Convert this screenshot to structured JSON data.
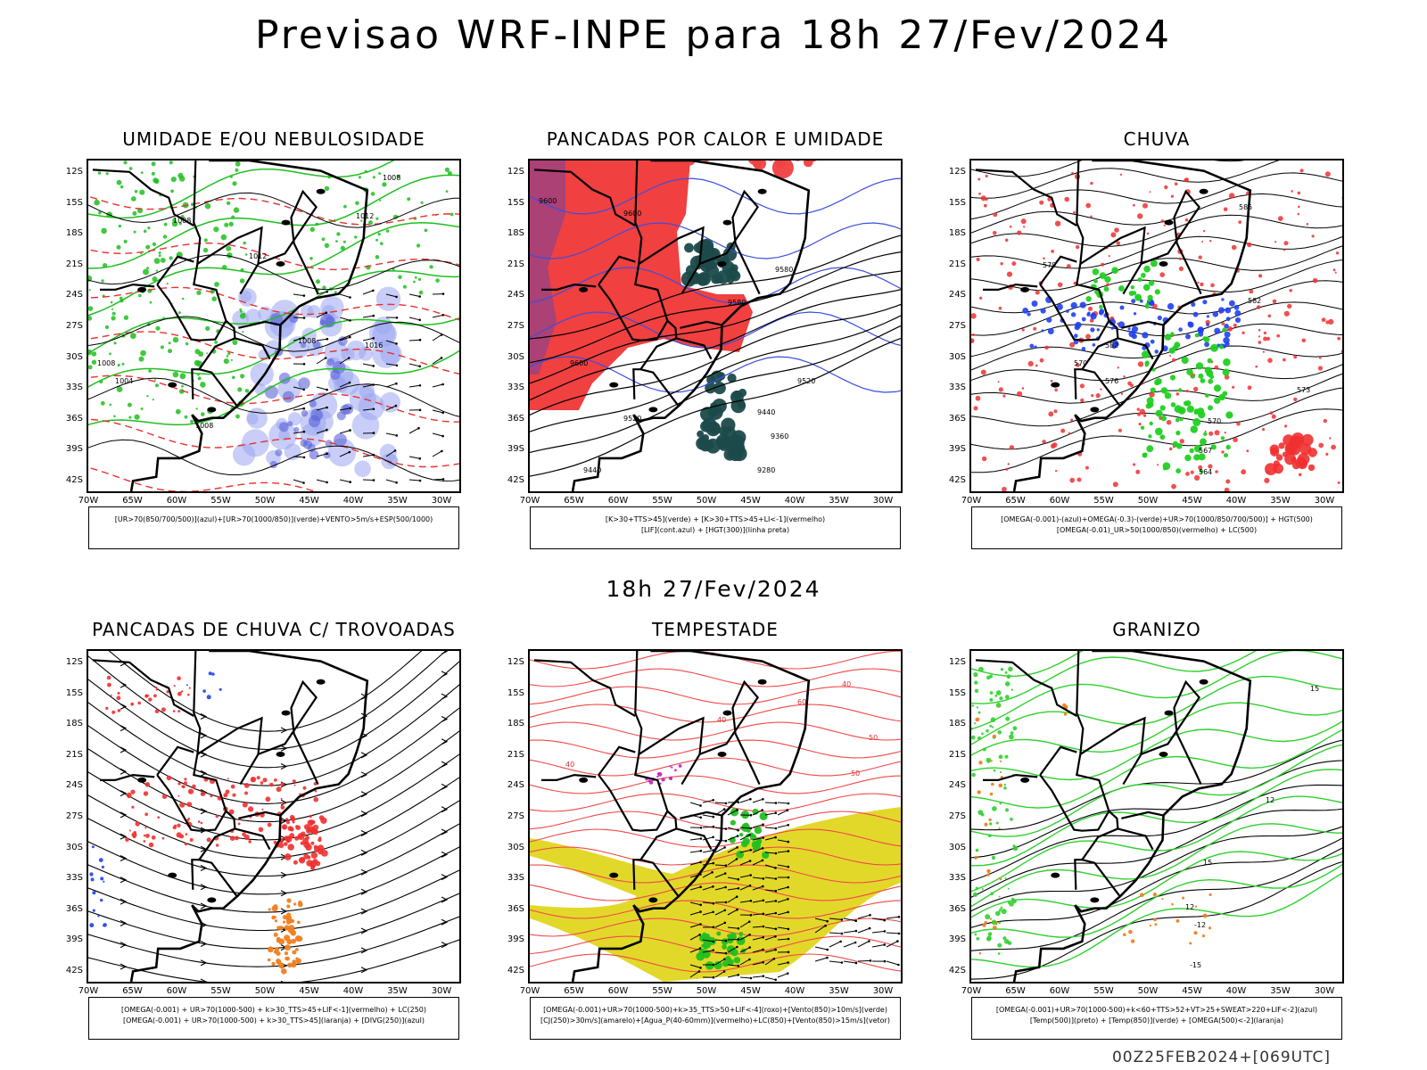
{
  "main_title": "Previsao WRF-INPE  para 18h 27/Fev/2024",
  "mid_title": "18h 27/Fev/2024",
  "run_stamp": "00Z25FEB2024+[069UTC]",
  "axis": {
    "lat_labels": [
      "12S",
      "15S",
      "18S",
      "21S",
      "24S",
      "27S",
      "30S",
      "33S",
      "36S",
      "39S",
      "42S"
    ],
    "lon_labels": [
      "70W",
      "65W",
      "60W",
      "55W",
      "50W",
      "45W",
      "40W",
      "35W",
      "30W"
    ]
  },
  "panels": [
    {
      "id": "umidade",
      "title": "UMIDADE E/OU NEBULOSIDADE",
      "legend": [
        "[UR>70(850/700/500)](azul)+[UR>70(1000/850)](verde)+VENTO>5m/s+ESP(500/1000)"
      ],
      "colors": {
        "humid_high": "#9aa6f0",
        "humid_low": "#1fbf1f",
        "thickness": "#e83030"
      },
      "isobar_labels": [
        "1008",
        "1008",
        "1012",
        "1012",
        "1008",
        "1016",
        "1008",
        "1004",
        "1008"
      ]
    },
    {
      "id": "pancadas_calor",
      "title": "PANCADAS POR CALOR E UMIDADE",
      "legend": [
        "[K>30+TTS>45](verde) + [K>30+TTS>45+LI<-1](vermelho)",
        "[LIF](cont.azul) + [HGT(300)](linha preta)"
      ],
      "colors": {
        "unstable": "#f04040",
        "moist": "#1c4a4a",
        "lif": "#3a4fe0"
      },
      "height_labels": [
        "9600",
        "9600",
        "9580",
        "9580",
        "9600",
        "9520",
        "9520",
        "9440",
        "9360",
        "9280",
        "9440"
      ]
    },
    {
      "id": "chuva",
      "title": "CHUVA",
      "legend": [
        "[OMEGA(-0.001)-(azul)+OMEGA(-0.3)-(verde)+UR>70(1000/850/700/500)] + HGT(500)",
        "[OMEGA(-0.01)_UR>50(1000/850)(vermelho) + LC(500)"
      ],
      "colors": {
        "blue": "#2040f0",
        "green": "#20d020",
        "red": "#f03030"
      },
      "height_labels": [
        "585",
        "582",
        "576",
        "573",
        "570",
        "567",
        "564",
        "570",
        "579",
        "582"
      ]
    },
    {
      "id": "trovoadas",
      "title": "PANCADAS DE CHUVA C/ TROVOADAS",
      "legend": [
        "[OMEGA(-0.001) + UR>70(1000-500) + k>30_TTS>45+LIF<-1](vermelho) + LC(250)",
        "[OMEGA(-0.001) + UR>70(1000-500) + k>30_TTS>45](laranja) + [DIVG(250)](azul)"
      ],
      "colors": {
        "red": "#f03030",
        "orange": "#f08020",
        "blue": "#2040f0"
      }
    },
    {
      "id": "tempestade",
      "title": "TEMPESTADE",
      "legend": [
        "[OMEGA(-0.001)+UR>70(1000-500)+k>35_TTS>50+LIF<-4](roxo)+[Vento(850)>10m/s](verde)",
        "[CJ(250)>30m/s](amarelo)+[Agua_P(40-60mm)](vermelho)+LC(850)+[Vento(850)>15m/s](vetor)"
      ],
      "colors": {
        "jet": "#e2d82a",
        "water": "#f04848",
        "wind": "#20c020",
        "purple": "#c020c0"
      },
      "contour_labels": [
        "40",
        "50",
        "40",
        "50",
        "60",
        "40"
      ]
    },
    {
      "id": "granizo",
      "title": "GRANIZO",
      "legend": [
        "[OMEGA(-0.001)+UR>70(1000-500)+k<60+TTS>52+VT>25+SWEAT>220+LIF<-2](azul)",
        "[Temp(500)](preto) + [Temp(850)](verde) + [OMEGA(500)<-2](laranja)"
      ],
      "colors": {
        "green": "#30d030",
        "orange": "#f08020"
      },
      "contour_labels": [
        "15",
        "12",
        "15",
        "12",
        "-12",
        "-15"
      ]
    }
  ]
}
